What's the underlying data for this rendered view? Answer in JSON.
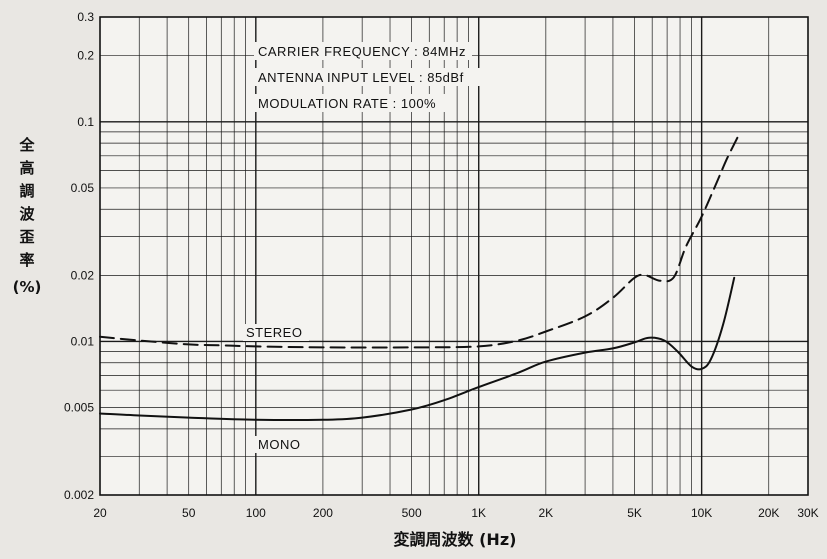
{
  "chart_data": {
    "type": "line",
    "title": "",
    "annotations": [
      "CARRIER FREQUENCY : 84MHz",
      "ANTENNA INPUT LEVEL : 85dBf",
      "MODULATION RATE : 100%"
    ],
    "xlabel": "変調周波数 (Hz)",
    "ylabel": "全高調波歪率 (%)",
    "x_scale": "log",
    "y_scale": "log",
    "xlim": [
      20,
      30000
    ],
    "ylim": [
      0.002,
      0.3
    ],
    "x_ticks": [
      {
        "value": 20,
        "label": "20"
      },
      {
        "value": 50,
        "label": "50"
      },
      {
        "value": 100,
        "label": "100"
      },
      {
        "value": 200,
        "label": "200"
      },
      {
        "value": 500,
        "label": "500"
      },
      {
        "value": 1000,
        "label": "1K"
      },
      {
        "value": 2000,
        "label": "2K"
      },
      {
        "value": 5000,
        "label": "5K"
      },
      {
        "value": 10000,
        "label": "10K"
      },
      {
        "value": 20000,
        "label": "20K"
      },
      {
        "value": 30000,
        "label": "30K"
      }
    ],
    "y_ticks": [
      {
        "value": 0.002,
        "label": "0.002"
      },
      {
        "value": 0.005,
        "label": "0.005"
      },
      {
        "value": 0.01,
        "label": "0.01"
      },
      {
        "value": 0.02,
        "label": "0.02"
      },
      {
        "value": 0.05,
        "label": "0.05"
      },
      {
        "value": 0.1,
        "label": "0.1"
      },
      {
        "value": 0.2,
        "label": "0.2"
      },
      {
        "value": 0.3,
        "label": "0.3"
      }
    ],
    "grid": true,
    "legend": "none",
    "series": [
      {
        "name": "STEREO",
        "style": "dashed",
        "points": [
          [
            20,
            0.0105
          ],
          [
            30,
            0.0101
          ],
          [
            50,
            0.0097
          ],
          [
            70,
            0.0096
          ],
          [
            100,
            0.0095
          ],
          [
            200,
            0.0094
          ],
          [
            500,
            0.0094
          ],
          [
            1000,
            0.0095
          ],
          [
            1500,
            0.0101
          ],
          [
            2000,
            0.0111
          ],
          [
            3000,
            0.013
          ],
          [
            4000,
            0.0158
          ],
          [
            5000,
            0.0195
          ],
          [
            5600,
            0.02
          ],
          [
            6500,
            0.0189
          ],
          [
            7500,
            0.0196
          ],
          [
            8500,
            0.027
          ],
          [
            10000,
            0.037
          ],
          [
            11500,
            0.051
          ],
          [
            13000,
            0.068
          ],
          [
            14500,
            0.085
          ]
        ]
      },
      {
        "name": "MONO",
        "style": "solid",
        "points": [
          [
            20,
            0.0047
          ],
          [
            30,
            0.0046
          ],
          [
            50,
            0.0045
          ],
          [
            100,
            0.0044
          ],
          [
            200,
            0.0044
          ],
          [
            300,
            0.0045
          ],
          [
            500,
            0.0049
          ],
          [
            700,
            0.0054
          ],
          [
            1000,
            0.0062
          ],
          [
            1500,
            0.0072
          ],
          [
            2000,
            0.0081
          ],
          [
            3000,
            0.0089
          ],
          [
            4000,
            0.0093
          ],
          [
            5000,
            0.0099
          ],
          [
            5800,
            0.0104
          ],
          [
            6800,
            0.0101
          ],
          [
            7800,
            0.009
          ],
          [
            9000,
            0.0077
          ],
          [
            10000,
            0.0075
          ],
          [
            11000,
            0.0083
          ],
          [
            12500,
            0.012
          ],
          [
            14000,
            0.0195
          ]
        ]
      }
    ]
  }
}
